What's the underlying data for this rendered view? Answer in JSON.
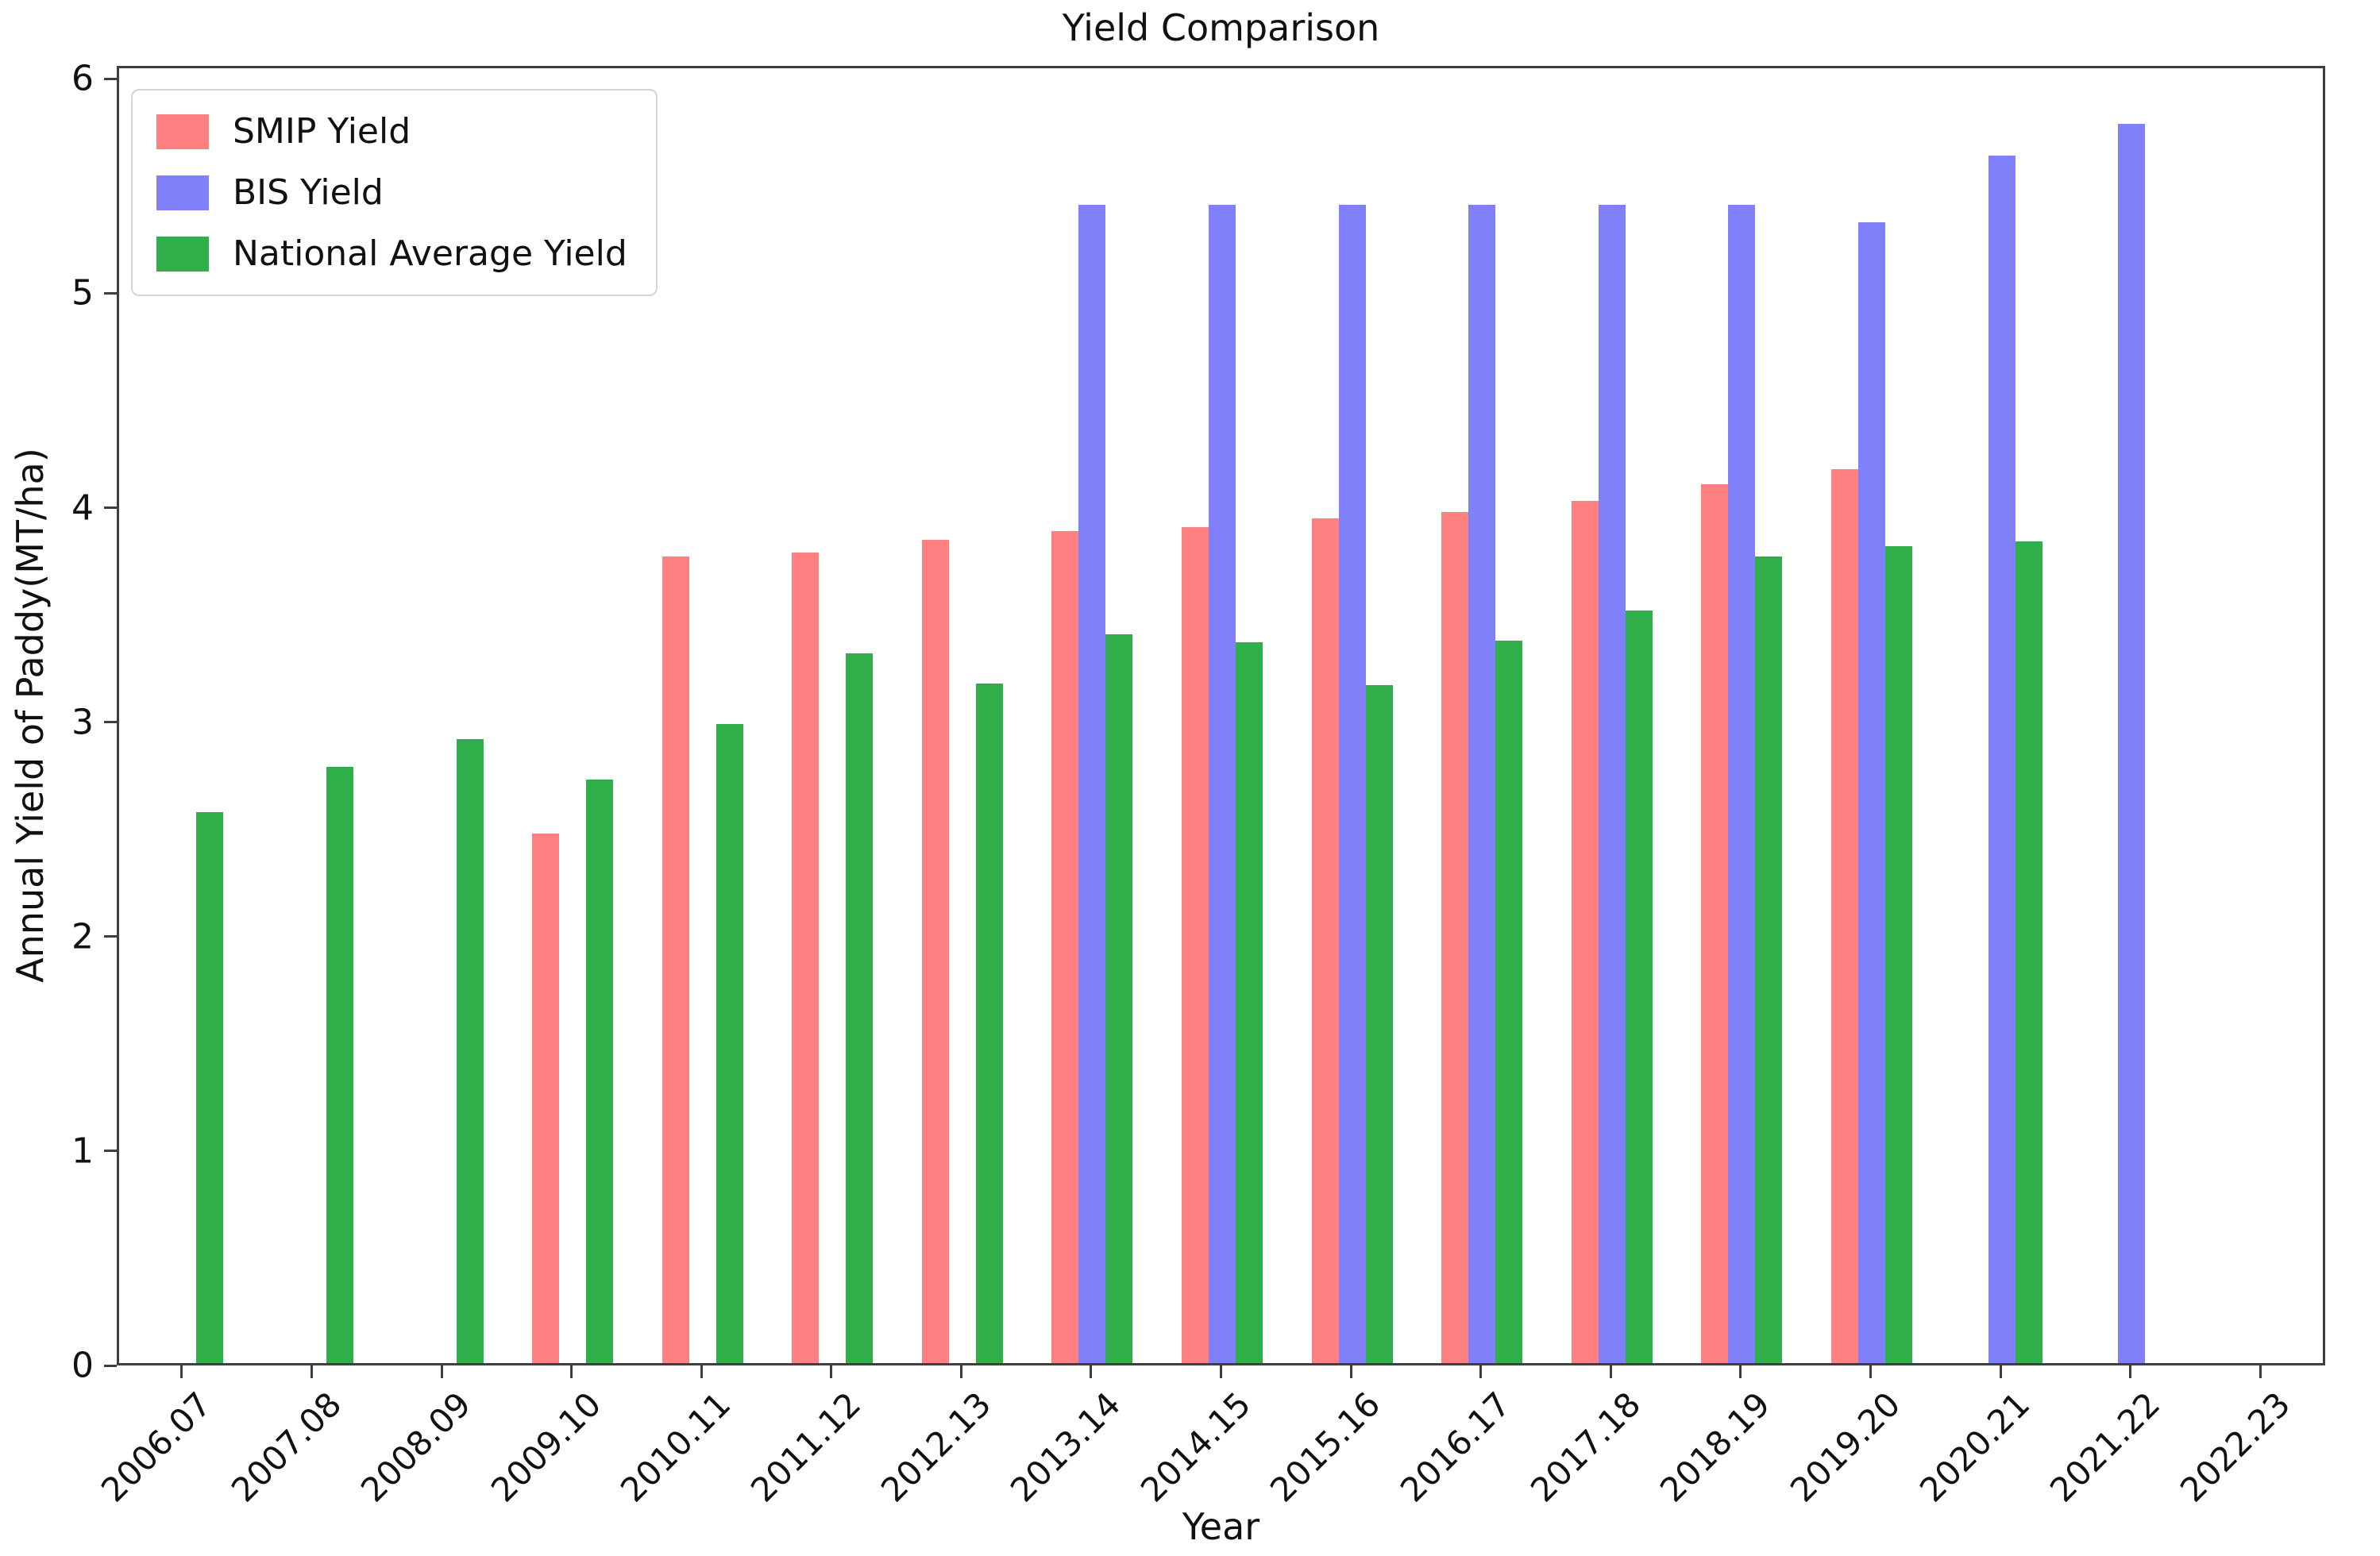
{
  "chart_data": {
    "type": "bar",
    "title": "Yield Comparison",
    "xlabel": "Year",
    "ylabel": "Annual Yield of Paddy(MT/ha)",
    "categories": [
      "2006.07",
      "2007.08",
      "2008.09",
      "2009.10",
      "2010.11",
      "2011.12",
      "2012.13",
      "2013.14",
      "2014.15",
      "2015.16",
      "2016.17",
      "2017.18",
      "2018.19",
      "2019.20",
      "2020.21",
      "2021.22",
      "2022.23"
    ],
    "series": [
      {
        "name": "SMIP Yield",
        "color": "#FF8080",
        "values": [
          null,
          null,
          null,
          2.47,
          3.76,
          3.78,
          3.84,
          3.88,
          3.9,
          3.94,
          3.97,
          4.02,
          4.1,
          4.17,
          null,
          null,
          null
        ]
      },
      {
        "name": "BIS Yield",
        "color": "#8080FB",
        "values": [
          null,
          null,
          null,
          null,
          null,
          null,
          null,
          5.4,
          5.4,
          5.4,
          5.4,
          5.4,
          5.4,
          5.32,
          5.63,
          5.78,
          null
        ]
      },
      {
        "name": "National Average Yield",
        "color": "#30AE4A",
        "values": [
          2.57,
          2.78,
          2.91,
          2.72,
          2.98,
          3.31,
          3.17,
          3.4,
          3.36,
          3.16,
          3.37,
          3.51,
          3.76,
          3.81,
          3.83,
          null,
          null
        ]
      }
    ],
    "ylim": [
      0,
      6.06
    ],
    "yticks": [
      0,
      1,
      2,
      3,
      4,
      5,
      6
    ],
    "legend_position": "upper left",
    "grid": false,
    "spine_color": "#3f3f3f"
  }
}
